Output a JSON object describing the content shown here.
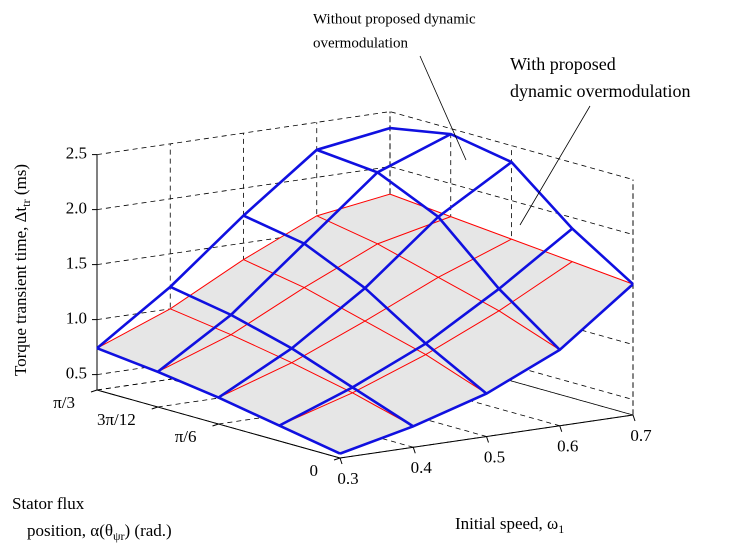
{
  "chart_data": {
    "type": "surface3d",
    "x_label": [
      "Initial speed, ω",
      "1"
    ],
    "y_label": {
      "line1": "Stator flux",
      "line2": [
        "position, α(θ",
        "ψr",
        ") (rad.)"
      ]
    },
    "z_label": [
      "Torque  transient time, Δt",
      "tr",
      " (ms)"
    ],
    "x": [
      0.3,
      0.4,
      0.5,
      0.6,
      0.7
    ],
    "y": [
      0,
      0.2618,
      0.5236,
      0.7854,
      1.0472
    ],
    "xlim": [
      0.3,
      0.7
    ],
    "ylim": [
      0,
      1.0472
    ],
    "zlim": [
      0.36,
      2.5
    ],
    "xticks": [
      0.3,
      0.4,
      0.5,
      0.6,
      0.7
    ],
    "yticks": [
      0,
      {
        "value": 0.5236,
        "label": "π/6"
      },
      {
        "value": 0.7854,
        "label": "3π/12"
      },
      {
        "value": 1.0472,
        "label": "π/3"
      }
    ],
    "zticks": [
      0.5,
      {
        "value": 1.0,
        "label": "1.0"
      },
      1.5,
      {
        "value": 2.0,
        "label": "2.0"
      },
      2.5
    ],
    "grid": true,
    "series": [
      {
        "name": [
          "Without proposed dynamic",
          "overmodulation"
        ],
        "color": "#1010e0",
        "fill": "none",
        "values": [
          [
            0.4,
            0.55,
            0.75,
            1.05,
            1.55
          ],
          [
            0.5,
            0.75,
            1.05,
            1.45,
            1.9
          ],
          [
            0.6,
            0.95,
            1.4,
            1.95,
            2.35
          ],
          [
            0.68,
            1.1,
            1.65,
            2.2,
            2.45
          ],
          [
            0.74,
            1.2,
            1.75,
            2.25,
            2.35
          ]
        ]
      },
      {
        "name": [
          "With proposed",
          "dynamic overmodulation"
        ],
        "color": "#ff0000",
        "fill": "#e6e6e6",
        "values": [
          [
            0.4,
            0.55,
            0.75,
            1.05,
            1.55
          ],
          [
            0.5,
            0.7,
            0.95,
            1.25,
            1.6
          ],
          [
            0.6,
            0.82,
            1.1,
            1.4,
            1.65
          ],
          [
            0.68,
            0.92,
            1.25,
            1.55,
            1.7
          ],
          [
            0.74,
            1.0,
            1.35,
            1.65,
            1.75
          ]
        ]
      }
    ]
  }
}
